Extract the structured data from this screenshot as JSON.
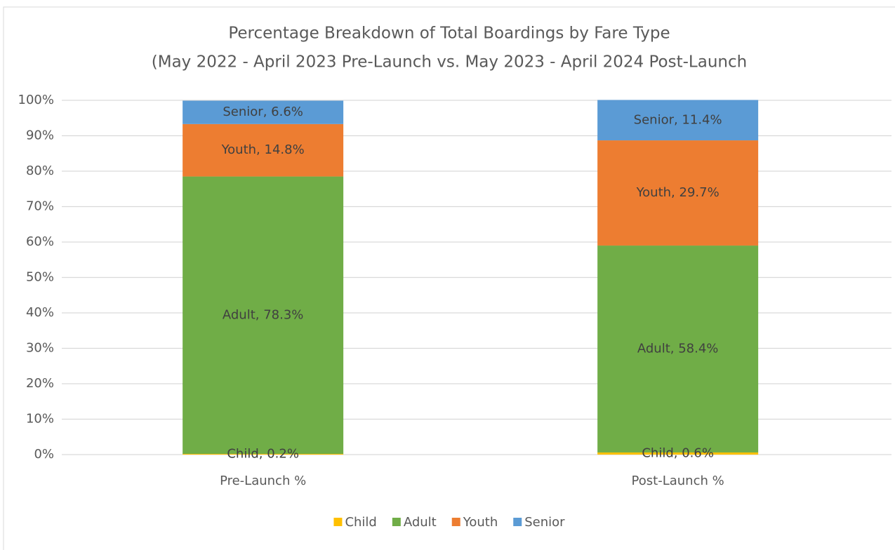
{
  "chart_data": {
    "type": "stacked_bar",
    "title": "Percentage Breakdown of Total Boardings by Fare Type",
    "subtitle": "(May 2022 - April 2023 Pre-Launch vs. May 2023 - April 2024 Post-Launch",
    "categories": [
      "Pre-Launch %",
      "Post-Launch %"
    ],
    "series": [
      {
        "name": "Child",
        "color": "#ffc000",
        "values": [
          0.2,
          0.6
        ],
        "value_labels": [
          "Child, 0.2%",
          "Child, 0.6%"
        ]
      },
      {
        "name": "Adult",
        "color": "#70ad47",
        "values": [
          78.3,
          58.4
        ],
        "value_labels": [
          "Adult, 78.3%",
          "Adult, 58.4%"
        ]
      },
      {
        "name": "Youth",
        "color": "#ed7d31",
        "values": [
          14.8,
          29.7
        ],
        "value_labels": [
          "Youth, 14.8%",
          "Youth, 29.7%"
        ]
      },
      {
        "name": "Senior",
        "color": "#5b9bd5",
        "values": [
          6.6,
          11.4
        ],
        "value_labels": [
          "Senior, 6.6%",
          "Senior, 11.4%"
        ]
      }
    ],
    "ylim": [
      0,
      100
    ],
    "yticks": [
      {
        "value": 0,
        "label": "0%"
      },
      {
        "value": 10,
        "label": "10%"
      },
      {
        "value": 20,
        "label": "20%"
      },
      {
        "value": 30,
        "label": "30%"
      },
      {
        "value": 40,
        "label": "40%"
      },
      {
        "value": 50,
        "label": "50%"
      },
      {
        "value": 60,
        "label": "60%"
      },
      {
        "value": 70,
        "label": "70%"
      },
      {
        "value": 80,
        "label": "80%"
      },
      {
        "value": 90,
        "label": "90%"
      },
      {
        "value": 100,
        "label": "100%"
      }
    ],
    "grid": true,
    "legend": "bottom"
  }
}
